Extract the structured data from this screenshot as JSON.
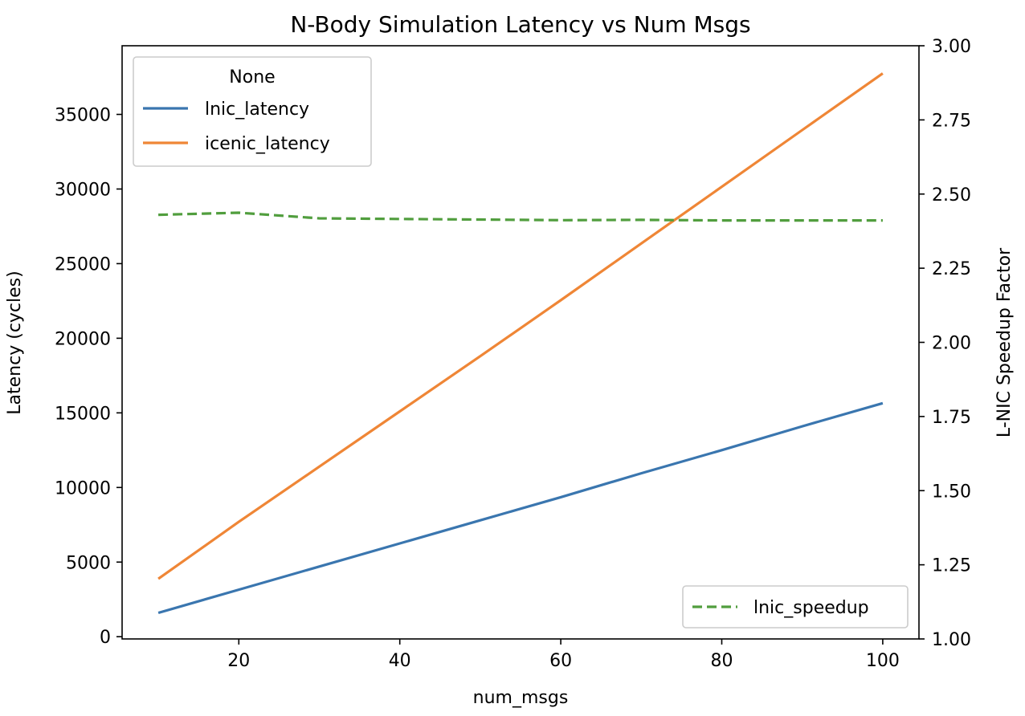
{
  "chart_data": {
    "type": "line",
    "title": "N-Body Simulation Latency vs Num Msgs",
    "xlabel": "num_msgs",
    "ylabel": "Latency (cycles)",
    "y2label": "L-NIC Speedup Factor",
    "xlim": [
      5.5,
      104.5
    ],
    "ylim": [
      -150,
      39600
    ],
    "y2lim": [
      1.0,
      3.0
    ],
    "xticks": [
      20,
      40,
      60,
      80,
      100
    ],
    "yticks": [
      0,
      5000,
      10000,
      15000,
      20000,
      25000,
      30000,
      35000
    ],
    "y2ticks": [
      "1.00",
      "1.25",
      "1.50",
      "1.75",
      "2.00",
      "2.25",
      "2.50",
      "2.75",
      "3.00"
    ],
    "grid": false,
    "x": [
      10,
      20,
      30,
      40,
      50,
      60,
      70,
      80,
      90,
      100
    ],
    "series": [
      {
        "name": "lnic_latency",
        "axis": "left",
        "color": "#3a76af",
        "style": "solid",
        "values": [
          1600,
          3150,
          4700,
          6250,
          7800,
          9350,
          10950,
          12500,
          14100,
          15650
        ]
      },
      {
        "name": "icenic_latency",
        "axis": "left",
        "color": "#ef8636",
        "style": "solid",
        "values": [
          3880,
          7700,
          11400,
          15100,
          18800,
          22550,
          26350,
          30150,
          33950,
          37750
        ]
      },
      {
        "name": "lnic_speedup",
        "axis": "right",
        "color": "#519e3e",
        "style": "dashed",
        "values": [
          2.43,
          2.437,
          2.418,
          2.416,
          2.414,
          2.412,
          2.413,
          2.411,
          2.411,
          2.411
        ]
      }
    ],
    "legend_left": {
      "title": "None",
      "placement": "upper-left",
      "entries": [
        "lnic_latency",
        "icenic_latency"
      ]
    },
    "legend_right": {
      "placement": "lower-right",
      "entries": [
        "lnic_speedup"
      ]
    }
  }
}
